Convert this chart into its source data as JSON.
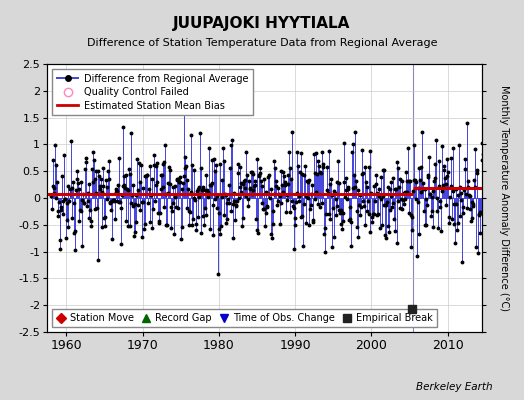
{
  "title": "JUUPAJOKI HYYTIALA",
  "subtitle": "Difference of Station Temperature Data from Regional Average",
  "ylabel": "Monthly Temperature Anomaly Difference (°C)",
  "xlim": [
    1957.5,
    2014.5
  ],
  "ylim": [
    -2.5,
    2.5
  ],
  "xticks": [
    1960,
    1970,
    1980,
    1990,
    2000,
    2010
  ],
  "yticks": [
    -2.5,
    -2,
    -1.5,
    -1,
    -0.5,
    0,
    0.5,
    1,
    1.5,
    2,
    2.5
  ],
  "ytick_labels": [
    "-2.5",
    "-2",
    "-1.5",
    "-1",
    "-0.5",
    "0",
    "0.5",
    "1",
    "1.5",
    "2",
    "2.5"
  ],
  "bias_value1": 0.07,
  "bias_value2": 0.18,
  "bias_break_year": 2005.5,
  "empirical_break_x": 2005.3,
  "empirical_break_y": -2.08,
  "vertical_line_x": 2005.5,
  "background_color": "#d8d8d8",
  "plot_bg_color": "#ffffff",
  "line_color": "#4444dd",
  "bias_color": "#cc0000",
  "watermark": "Berkeley Earth",
  "seed": 42,
  "start_year": 1958,
  "end_year": 2014
}
